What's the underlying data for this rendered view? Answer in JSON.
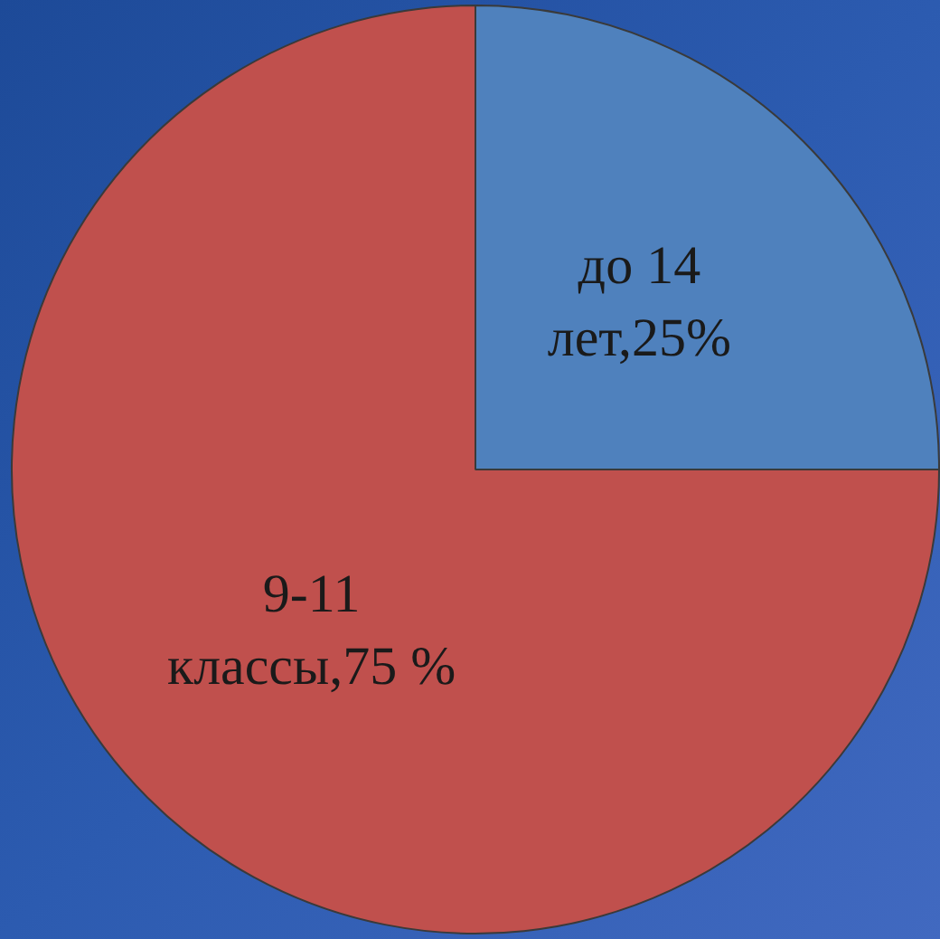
{
  "chart_data": {
    "type": "pie",
    "categories": [
      "до 14 лет",
      "9-11 классы"
    ],
    "values": [
      25,
      75
    ],
    "colors": [
      "#4f81bd",
      "#c0504d"
    ],
    "value_labels": [
      "25%",
      "75 %"
    ],
    "legend": false
  }
}
